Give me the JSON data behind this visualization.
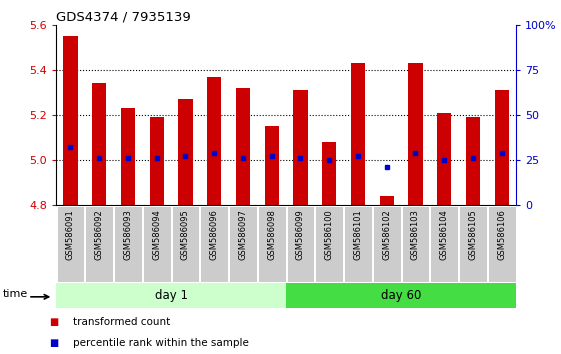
{
  "title": "GDS4374 / 7935139",
  "samples": [
    "GSM586091",
    "GSM586092",
    "GSM586093",
    "GSM586094",
    "GSM586095",
    "GSM586096",
    "GSM586097",
    "GSM586098",
    "GSM586099",
    "GSM586100",
    "GSM586101",
    "GSM586102",
    "GSM586103",
    "GSM586104",
    "GSM586105",
    "GSM586106"
  ],
  "bar_tops": [
    5.55,
    5.34,
    5.23,
    5.19,
    5.27,
    5.37,
    5.32,
    5.15,
    5.31,
    5.08,
    5.43,
    4.84,
    5.43,
    5.21,
    5.19,
    5.31
  ],
  "bar_bottom": 4.8,
  "percentile_values": [
    5.06,
    5.01,
    5.01,
    5.01,
    5.02,
    5.03,
    5.01,
    5.02,
    5.01,
    5.0,
    5.02,
    4.97,
    5.03,
    5.0,
    5.01,
    5.03
  ],
  "ylim": [
    4.8,
    5.6
  ],
  "yticks_left": [
    4.8,
    5.0,
    5.2,
    5.4,
    5.6
  ],
  "yticks_right": [
    0,
    25,
    50,
    75,
    100
  ],
  "bar_color": "#cc0000",
  "percentile_color": "#0000cc",
  "day1_samples": 8,
  "day60_samples": 8,
  "day1_label": "day 1",
  "day60_label": "day 60",
  "day1_color": "#ccffcc",
  "day60_color": "#44dd44",
  "right_axis_color": "#0000cc",
  "left_axis_color": "#cc0000",
  "legend_red_label": "transformed count",
  "legend_blue_label": "percentile rank within the sample",
  "xlabel_area_color": "#cccccc",
  "bar_width": 0.5
}
